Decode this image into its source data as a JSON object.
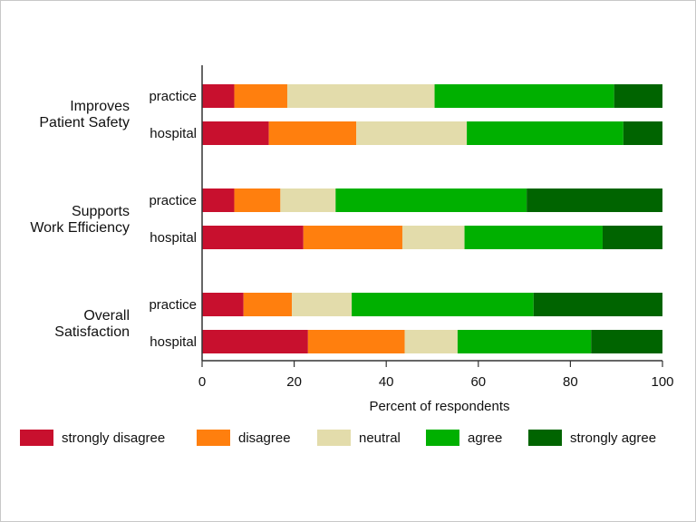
{
  "chart_data": {
    "type": "bar",
    "orientation": "horizontal",
    "stacked": true,
    "xlabel": "Percent of respondents",
    "xlim": [
      0,
      100
    ],
    "xticks": [
      0,
      20,
      40,
      60,
      80,
      100
    ],
    "categories": [
      "strongly disagree",
      "disagree",
      "neutral",
      "agree",
      "strongly agree"
    ],
    "colors": [
      "#c8102e",
      "#ff7f0e",
      "#e3dcab",
      "#00b000",
      "#006400"
    ],
    "legend_position": "bottom",
    "groups": [
      {
        "label": [
          "Improves",
          "Patient Safety"
        ],
        "rows": [
          {
            "label": "practice",
            "values": [
              7,
              11.5,
              32,
              39,
              10.5
            ]
          },
          {
            "label": "hospital",
            "values": [
              14.5,
              19,
              24,
              34,
              8.5
            ]
          }
        ]
      },
      {
        "label": [
          "Supports",
          "Work Efficiency"
        ],
        "rows": [
          {
            "label": "practice",
            "values": [
              7,
              10,
              12,
              41.5,
              29.5
            ]
          },
          {
            "label": "hospital",
            "values": [
              22,
              21.5,
              13.5,
              30,
              13
            ]
          }
        ]
      },
      {
        "label": [
          "Overall",
          "Satisfaction"
        ],
        "rows": [
          {
            "label": "practice",
            "values": [
              9,
              10.5,
              13,
              39.5,
              28
            ]
          },
          {
            "label": "hospital",
            "values": [
              23,
              21,
              11.5,
              29,
              15.5
            ]
          }
        ]
      }
    ]
  }
}
